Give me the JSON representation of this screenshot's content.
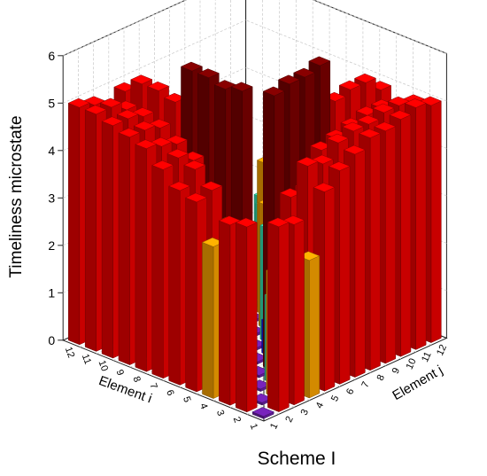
{
  "chart_data": {
    "type": "bar3d",
    "title": "Scheme I",
    "zlabel": "Timeliness microstate",
    "xlabel": "Element i",
    "ylabel": "Element j",
    "zlim": [
      0,
      6
    ],
    "z_ticks": [
      "0",
      "1",
      "2",
      "3",
      "4",
      "5",
      "6"
    ],
    "i_ticks": [
      "1",
      "2",
      "3",
      "4",
      "5",
      "6",
      "7",
      "8",
      "9",
      "10",
      "11",
      "12"
    ],
    "j_ticks": [
      "1",
      "2",
      "3",
      "4",
      "5",
      "6",
      "7",
      "8",
      "9",
      "10",
      "11",
      "12"
    ],
    "grid": true,
    "color_bands": [
      {
        "max": 0.2,
        "color": "#6b1fa8"
      },
      {
        "max": 1.2,
        "color": "#1010e0"
      },
      {
        "max": 2.5,
        "color": "#30e0b0"
      },
      {
        "max": 3.4,
        "color": "#f5a000"
      },
      {
        "max": 5.2,
        "color": "#e80000"
      },
      {
        "max": 9,
        "color": "#7a0000"
      }
    ],
    "values": [
      [
        0.05,
        3.9,
        3.8,
        2.9,
        4.2,
        4.5,
        4.7,
        4.9,
        4.9,
        5.0,
        5.1,
        5.0
      ],
      [
        3.9,
        0.05,
        2.6,
        3.1,
        4.6,
        4.5,
        4.8,
        4.9,
        4.9,
        5.0,
        5.0,
        4.9
      ],
      [
        3.8,
        2.6,
        0.05,
        1.8,
        3.8,
        3.8,
        4.5,
        4.6,
        4.7,
        4.8,
        4.8,
        4.7
      ],
      [
        3.2,
        2.9,
        1.8,
        0.05,
        5.8,
        5.9,
        5.9,
        6.0,
        5.1,
        5.2,
        5.2,
        4.9
      ],
      [
        4.0,
        4.1,
        3.2,
        5.9,
        0.05,
        0.7,
        2.4,
        3.4,
        4.1,
        4.0,
        2.6,
        3.8
      ],
      [
        4.1,
        4.4,
        3.8,
        5.8,
        0.7,
        0.05,
        2.4,
        3.4,
        3.8,
        3.9,
        2.4,
        2.5
      ],
      [
        4.4,
        4.5,
        4.3,
        5.9,
        2.4,
        2.4,
        0.05,
        2.6,
        3.9,
        3.2,
        2.2,
        1.8
      ],
      [
        4.7,
        4.6,
        4.5,
        5.9,
        3.4,
        3.4,
        2.6,
        0.05,
        3.2,
        2.7,
        1.6,
        1.9
      ],
      [
        4.8,
        4.8,
        4.7,
        5.1,
        4.1,
        3.8,
        3.9,
        3.2,
        0.05,
        2.0,
        1.9,
        2.0
      ],
      [
        4.9,
        4.9,
        4.8,
        5.2,
        4.0,
        3.9,
        3.2,
        2.7,
        2.0,
        0.05,
        1.9,
        2.0
      ],
      [
        5.0,
        5.0,
        4.8,
        5.2,
        2.6,
        2.4,
        2.2,
        1.6,
        1.9,
        1.9,
        0.05,
        0.7
      ],
      [
        5.0,
        4.9,
        4.7,
        4.9,
        3.8,
        2.5,
        1.8,
        1.9,
        2.0,
        2.0,
        0.7,
        0.05
      ]
    ]
  }
}
